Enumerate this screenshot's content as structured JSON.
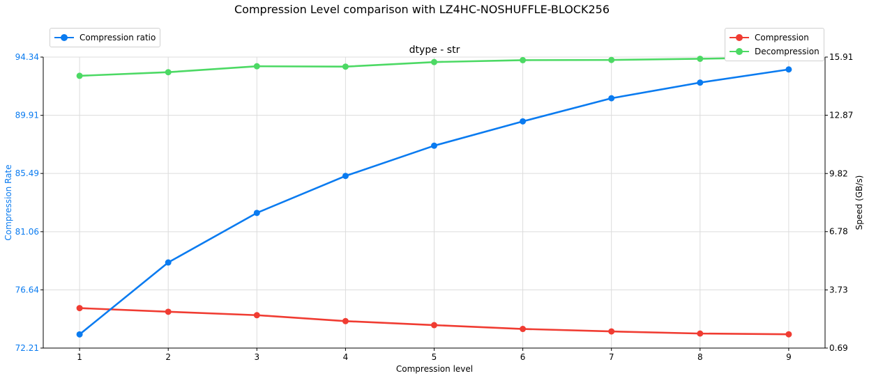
{
  "chart_data": {
    "type": "line",
    "title": "Compression Level comparison with LZ4HC-NOSHUFFLE-BLOCK256",
    "subtitle": "dtype - str",
    "xlabel": "Compression level",
    "ylabel_left": "Compression Rate",
    "ylabel_right": "Speed (GB/s)",
    "categories": [
      1,
      2,
      3,
      4,
      5,
      6,
      7,
      8,
      9
    ],
    "ylim_left": [
      72.21,
      94.34
    ],
    "yticks_left": [
      "72.21",
      "76.64",
      "81.06",
      "85.49",
      "89.91",
      "94.34"
    ],
    "ylim_right": [
      0.69,
      15.91
    ],
    "yticks_right": [
      "0.69",
      "3.73",
      "6.78",
      "9.82",
      "12.87",
      "15.91"
    ],
    "grid": true,
    "series": [
      {
        "name": "Compression ratio",
        "axis": "left",
        "color": "#0a7bf0",
        "values": [
          73.25,
          78.72,
          82.49,
          85.3,
          87.6,
          89.45,
          91.21,
          92.4,
          93.4
        ]
      },
      {
        "name": "Compression",
        "axis": "right",
        "color": "#f03c32",
        "values": [
          2.78,
          2.59,
          2.41,
          2.1,
          1.89,
          1.69,
          1.56,
          1.45,
          1.41
        ]
      },
      {
        "name": "Decompression",
        "axis": "right",
        "color": "#4cd964",
        "values": [
          14.93,
          15.12,
          15.43,
          15.41,
          15.65,
          15.75,
          15.76,
          15.82,
          15.9
        ]
      }
    ],
    "legends": [
      {
        "placement": "top-left",
        "entries": [
          "Compression ratio"
        ]
      },
      {
        "placement": "top-right",
        "entries": [
          "Compression",
          "Decompression"
        ]
      }
    ]
  }
}
